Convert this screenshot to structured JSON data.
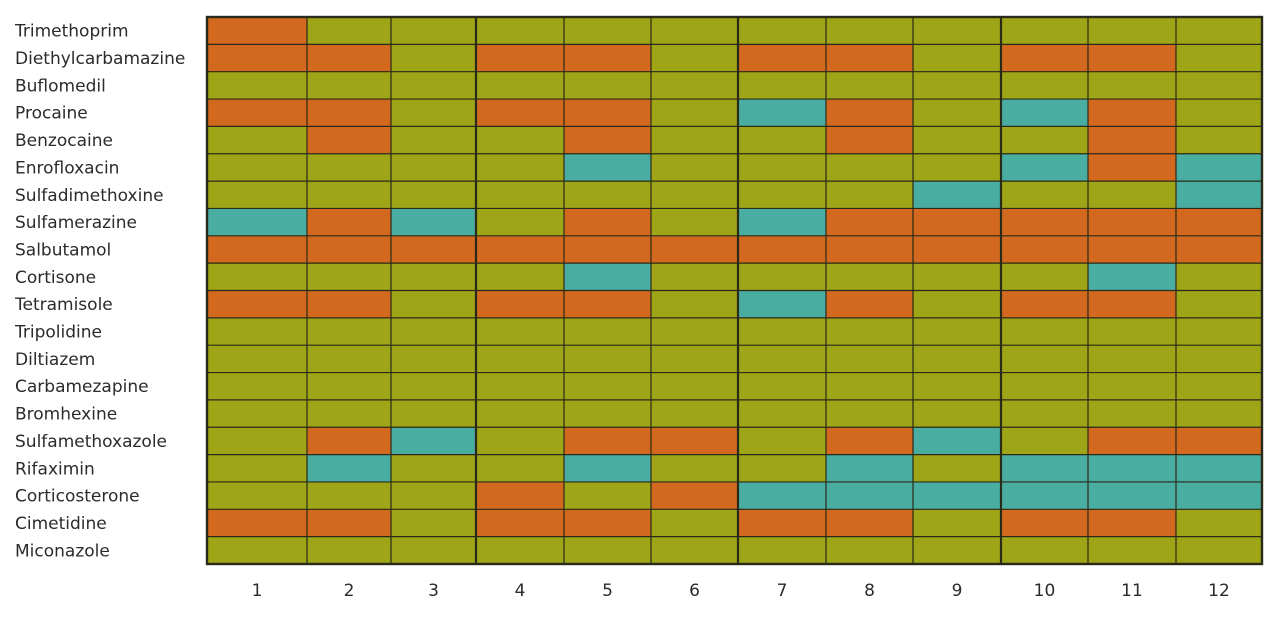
{
  "chart_data": {
    "type": "heatmap",
    "title": "",
    "xlabel": "",
    "ylabel": "",
    "columns": [
      "1",
      "2",
      "3",
      "4",
      "5",
      "6",
      "7",
      "8",
      "9",
      "10",
      "11",
      "12"
    ],
    "column_groups": [
      [
        0,
        2
      ],
      [
        3,
        5
      ],
      [
        6,
        8
      ],
      [
        9,
        11
      ]
    ],
    "rows": [
      "Trimethoprim",
      "Diethylcarbamazine",
      "Buflomedil",
      "Procaine",
      "Benzocaine",
      "Enrofloxacin",
      "Sulfadimethoxine",
      "Sulfamerazine",
      "Salbutamol",
      "Cortisone",
      "Tetramisole",
      "Tripolidine",
      "Diltiazem",
      "Carbamezapine",
      "Bromhexine",
      "Sulfamethoxazole",
      "Rifaximin",
      "Corticosterone",
      "Cimetidine",
      "Miconazole"
    ],
    "category_colors": {
      "O": "#d2691e",
      "G": "#9ea516",
      "T": "#4aada1"
    },
    "values": [
      [
        "O",
        "G",
        "G",
        "G",
        "G",
        "G",
        "G",
        "G",
        "G",
        "G",
        "G",
        "G"
      ],
      [
        "O",
        "O",
        "G",
        "O",
        "O",
        "G",
        "O",
        "O",
        "G",
        "O",
        "O",
        "G"
      ],
      [
        "G",
        "G",
        "G",
        "G",
        "G",
        "G",
        "G",
        "G",
        "G",
        "G",
        "G",
        "G"
      ],
      [
        "O",
        "O",
        "G",
        "O",
        "O",
        "G",
        "T",
        "O",
        "G",
        "T",
        "O",
        "G"
      ],
      [
        "G",
        "O",
        "G",
        "G",
        "O",
        "G",
        "G",
        "O",
        "G",
        "G",
        "O",
        "G"
      ],
      [
        "G",
        "G",
        "G",
        "G",
        "T",
        "G",
        "G",
        "G",
        "G",
        "T",
        "O",
        "T"
      ],
      [
        "G",
        "G",
        "G",
        "G",
        "G",
        "G",
        "G",
        "G",
        "T",
        "G",
        "G",
        "T"
      ],
      [
        "T",
        "O",
        "T",
        "G",
        "O",
        "G",
        "T",
        "O",
        "O",
        "O",
        "O",
        "O"
      ],
      [
        "O",
        "O",
        "O",
        "O",
        "O",
        "O",
        "O",
        "O",
        "O",
        "O",
        "O",
        "O"
      ],
      [
        "G",
        "G",
        "G",
        "G",
        "T",
        "G",
        "G",
        "G",
        "G",
        "G",
        "T",
        "G"
      ],
      [
        "O",
        "O",
        "G",
        "O",
        "O",
        "G",
        "T",
        "O",
        "G",
        "O",
        "O",
        "G"
      ],
      [
        "G",
        "G",
        "G",
        "G",
        "G",
        "G",
        "G",
        "G",
        "G",
        "G",
        "G",
        "G"
      ],
      [
        "G",
        "G",
        "G",
        "G",
        "G",
        "G",
        "G",
        "G",
        "G",
        "G",
        "G",
        "G"
      ],
      [
        "G",
        "G",
        "G",
        "G",
        "G",
        "G",
        "G",
        "G",
        "G",
        "G",
        "G",
        "G"
      ],
      [
        "G",
        "G",
        "G",
        "G",
        "G",
        "G",
        "G",
        "G",
        "G",
        "G",
        "G",
        "G"
      ],
      [
        "G",
        "O",
        "T",
        "G",
        "O",
        "O",
        "G",
        "O",
        "T",
        "G",
        "O",
        "O"
      ],
      [
        "G",
        "T",
        "G",
        "G",
        "T",
        "G",
        "G",
        "T",
        "G",
        "T",
        "T",
        "T"
      ],
      [
        "G",
        "G",
        "G",
        "O",
        "G",
        "O",
        "T",
        "T",
        "T",
        "T",
        "T",
        "T"
      ],
      [
        "O",
        "O",
        "G",
        "O",
        "O",
        "G",
        "O",
        "O",
        "G",
        "O",
        "O",
        "G"
      ],
      [
        "G",
        "G",
        "G",
        "G",
        "G",
        "G",
        "G",
        "G",
        "G",
        "G",
        "G",
        "G"
      ]
    ]
  }
}
